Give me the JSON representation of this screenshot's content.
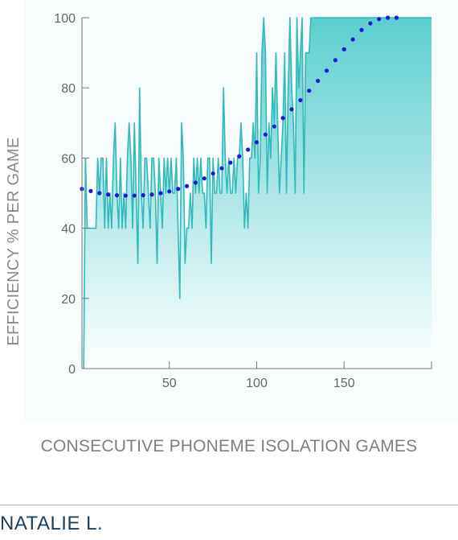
{
  "chart_data": {
    "type": "area",
    "ylabel": "EFFICIENCY % PER GAME",
    "xlabel": "CONSECUTIVE PHONEME ISOLATION GAMES",
    "xlim": [
      0,
      200
    ],
    "ylim": [
      0,
      100
    ],
    "xticks": [
      50,
      100,
      150
    ],
    "yticks": [
      0,
      20,
      40,
      60,
      80,
      100
    ],
    "colors": {
      "area_top": "#5ccfcf",
      "area_bottom": "#ffffff",
      "line": "#33b9b9",
      "trend": "#1a1ad6"
    },
    "series": [
      {
        "kind": "efficiency",
        "x": [
          1,
          2,
          3,
          4,
          5,
          6,
          7,
          8,
          9,
          10,
          11,
          12,
          13,
          14,
          15,
          16,
          17,
          18,
          19,
          20,
          21,
          22,
          23,
          24,
          25,
          26,
          27,
          28,
          29,
          30,
          31,
          32,
          33,
          34,
          35,
          36,
          37,
          38,
          39,
          40,
          41,
          42,
          43,
          44,
          45,
          46,
          47,
          48,
          49,
          50,
          51,
          52,
          53,
          54,
          55,
          56,
          57,
          58,
          59,
          60,
          61,
          62,
          63,
          64,
          65,
          66,
          67,
          68,
          69,
          70,
          71,
          72,
          73,
          74,
          75,
          76,
          77,
          78,
          79,
          80,
          81,
          82,
          83,
          84,
          85,
          86,
          87,
          88,
          89,
          90,
          91,
          92,
          93,
          94,
          95,
          96,
          97,
          98,
          99,
          100,
          101,
          102,
          103,
          104,
          105,
          106,
          107,
          108,
          109,
          110,
          111,
          112,
          113,
          114,
          115,
          116,
          117,
          118,
          119,
          120,
          121,
          122,
          123,
          124,
          125,
          126,
          127,
          128,
          129,
          130,
          131,
          132,
          133,
          134,
          135,
          136,
          137,
          138,
          139,
          140,
          141,
          142,
          143,
          144,
          145,
          146,
          147,
          148,
          149,
          150,
          151,
          152,
          153,
          154,
          155,
          156,
          157,
          158,
          159,
          160,
          161,
          162,
          163,
          164,
          165,
          166,
          167,
          168,
          169,
          170,
          171,
          172,
          173,
          174,
          175,
          176,
          177,
          178,
          179,
          180,
          181,
          182,
          183,
          184,
          185,
          186,
          187,
          188,
          189,
          190,
          191,
          192,
          193,
          194,
          195,
          196,
          197,
          198,
          199,
          200
        ],
        "values": [
          0,
          60,
          40,
          40,
          40,
          40,
          40,
          40,
          60,
          50,
          60,
          60,
          40,
          60,
          40,
          50,
          40,
          60,
          70,
          50,
          40,
          60,
          40,
          50,
          40,
          60,
          70,
          60,
          40,
          70,
          50,
          30,
          80,
          50,
          40,
          60,
          60,
          50,
          40,
          60,
          60,
          50,
          30,
          60,
          50,
          40,
          60,
          50,
          60,
          50,
          60,
          50,
          50,
          60,
          40,
          20,
          70,
          60,
          30,
          40,
          40,
          50,
          40,
          60,
          50,
          60,
          50,
          60,
          50,
          50,
          40,
          60,
          60,
          30,
          60,
          50,
          50,
          60,
          50,
          50,
          80,
          60,
          50,
          60,
          50,
          50,
          60,
          50,
          60,
          60,
          70,
          60,
          40,
          50,
          40,
          60,
          60,
          70,
          60,
          90,
          50,
          60,
          90,
          100,
          90,
          50,
          70,
          60,
          80,
          70,
          90,
          70,
          50,
          60,
          70,
          90,
          50,
          80,
          100,
          80,
          70,
          50,
          100,
          80,
          90,
          100,
          50,
          90,
          90,
          90,
          100,
          100,
          100,
          100,
          100,
          100,
          100,
          100,
          100,
          100,
          100,
          100,
          100,
          100,
          100,
          100,
          100,
          100,
          100,
          100,
          100,
          100,
          100,
          100,
          100,
          100,
          100,
          100,
          100,
          100,
          100,
          100,
          100,
          100,
          100,
          100,
          100,
          100,
          100,
          100,
          100,
          100,
          100,
          100,
          100,
          100,
          100,
          100,
          100,
          100,
          100,
          100,
          100,
          100,
          100,
          100,
          100,
          100,
          100,
          100,
          100,
          100,
          100,
          100,
          100,
          100,
          100,
          100,
          100,
          100
        ]
      },
      {
        "kind": "trend",
        "x": [
          0,
          5,
          10,
          15,
          20,
          25,
          30,
          35,
          40,
          45,
          50,
          55,
          60,
          65,
          70,
          75,
          80,
          85,
          90,
          95,
          100,
          105,
          110,
          115,
          120,
          125,
          130,
          135,
          140,
          145,
          150,
          155,
          160,
          165,
          170,
          175,
          180
        ],
        "values": [
          51.2,
          50.6,
          50.0,
          49.6,
          49.4,
          49.3,
          49.3,
          49.4,
          49.6,
          50.0,
          50.5,
          51.2,
          52.0,
          53.0,
          54.2,
          55.6,
          57.1,
          58.7,
          60.5,
          62.4,
          64.5,
          66.7,
          69.0,
          71.4,
          73.9,
          76.5,
          79.2,
          82.0,
          84.9,
          87.9,
          91.0,
          93.8,
          96.5,
          98.4,
          99.6,
          100.0,
          100.0
        ]
      }
    ]
  },
  "footer": {
    "name": "NATALIE L."
  }
}
